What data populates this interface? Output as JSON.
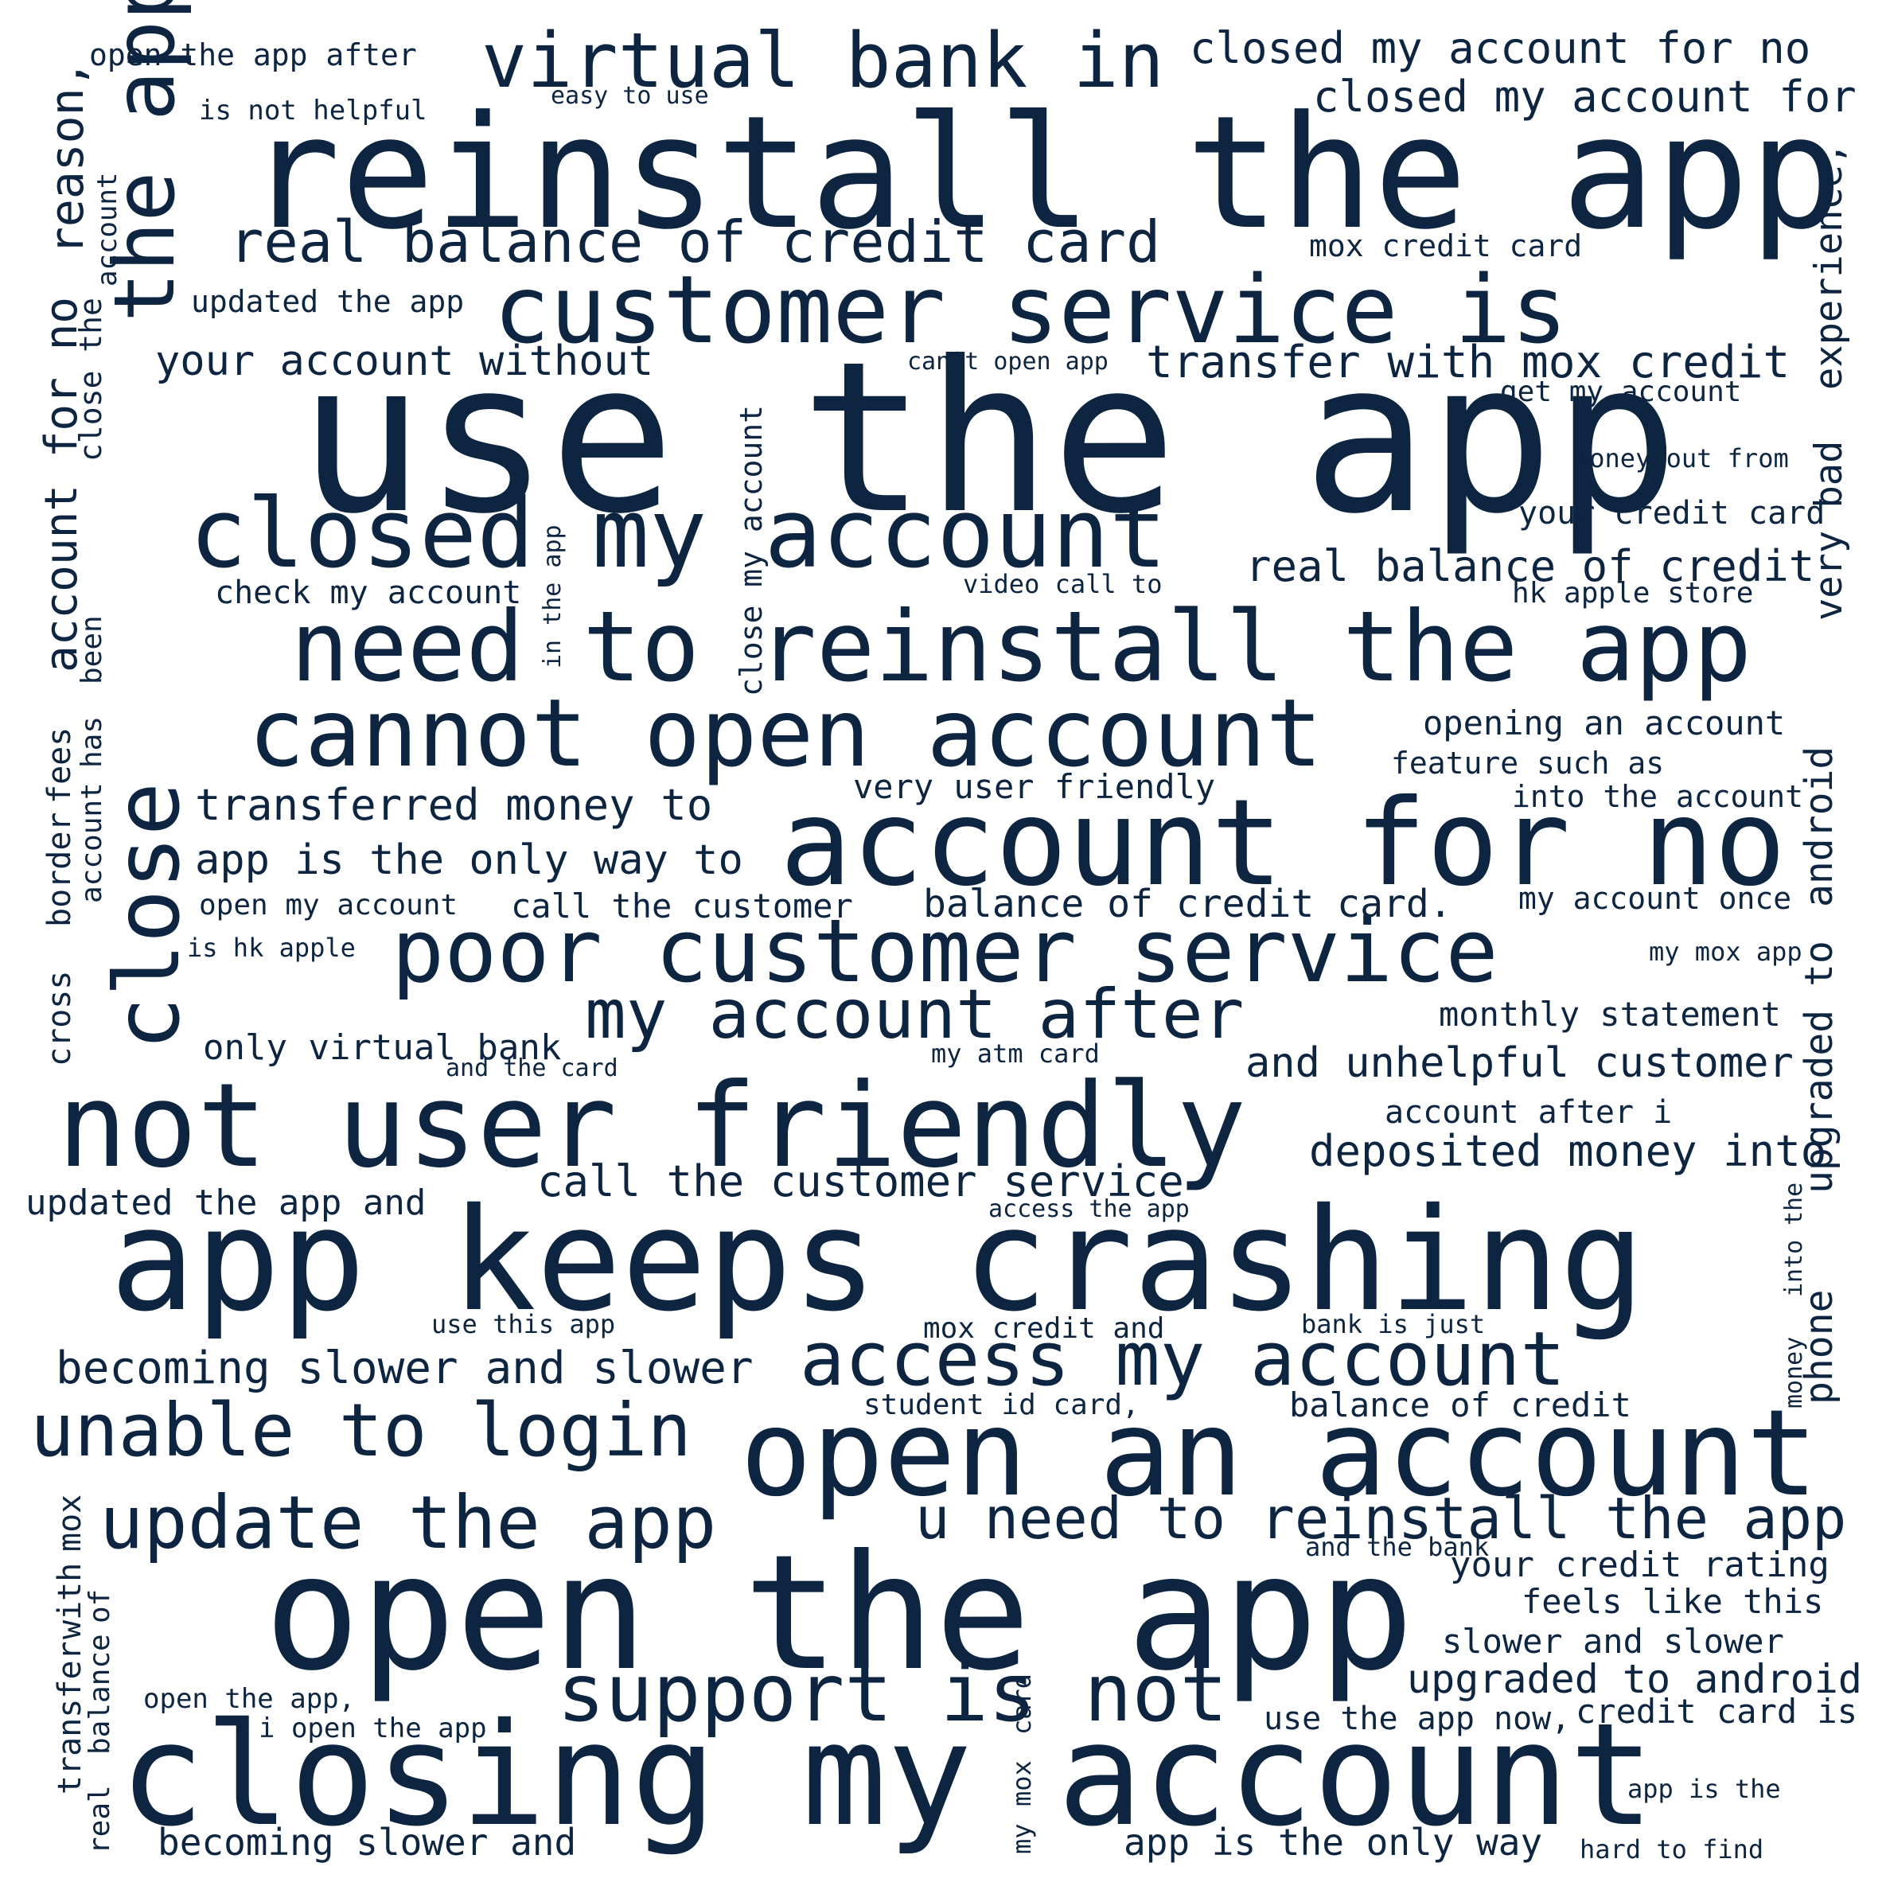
{
  "text_color": "#0d2540",
  "background_color": "#ffffff",
  "phrases": [
    "open the app after",
    "virtual bank in",
    "closed my account for no",
    "easy to use",
    "is not helpful",
    "closed my account for",
    "reinstall the app",
    "account",
    "reason,",
    "the app",
    "real balance of credit card",
    "mox credit card",
    "experience,",
    "customer service is",
    "updated the app",
    "your account without",
    "can't open app",
    "transfer with mox credit",
    "get my account",
    "close the",
    "use the app",
    "money out from",
    "account for no",
    "very bad",
    "your credit card",
    "closed my account",
    "in the app",
    "close my account",
    "real balance of credit",
    "check my account",
    "video call to",
    "hk apple store",
    "been",
    "need to reinstall the app",
    "close",
    "cannot open account",
    "opening an account",
    "feature such as",
    "has",
    "account",
    "transferred money to",
    "very user friendly",
    "into the account",
    "fees",
    "android",
    "account for no",
    "app is the only way to",
    "border",
    "open my account",
    "call the customer",
    "balance of credit card.",
    "my account once",
    "is hk apple",
    "poor customer service",
    "my mox app",
    "cross",
    "my account after",
    "monthly statement",
    "only virtual bank",
    "and the card",
    "my atm card",
    "and unhelpful customer",
    "not user friendly",
    "account after i",
    "upgraded to",
    "deposited money into",
    "call the customer service",
    "updated the app and",
    "access the app",
    "app keeps crashing",
    "the",
    "phone",
    "use this app",
    "mox credit and",
    "bank is just",
    "into",
    "becoming slower and slower",
    "access my account",
    "student id card,",
    "balance of credit",
    "money",
    "unable to login",
    "open an account",
    "update the app",
    "u need to reinstall the app",
    "mox",
    "and the bank",
    "open the app",
    "your credit rating",
    "with",
    "feels like this",
    "slower and slower",
    "transfer",
    "of",
    "support is not",
    "upgraded to android",
    "open the app,",
    "card",
    "use the app now,",
    "credit card is",
    "i open the app",
    "balance",
    "closing my account",
    "mox",
    "app is the",
    "real",
    "my",
    "becoming slower and",
    "app is the only way",
    "hard to find"
  ]
}
